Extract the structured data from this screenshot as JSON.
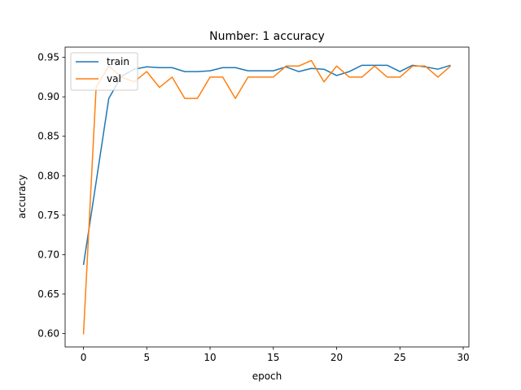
{
  "chart_data": {
    "type": "line",
    "title": "Number: 1 accuracy",
    "xlabel": "epoch",
    "ylabel": "accuracy",
    "xlim": [
      -1.45,
      30.45
    ],
    "ylim": [
      0.583,
      0.963
    ],
    "xticks": [
      0,
      5,
      10,
      15,
      20,
      25,
      30
    ],
    "yticks": [
      0.6,
      0.65,
      0.7,
      0.75,
      0.8,
      0.85,
      0.9,
      0.95
    ],
    "xtick_labels": [
      "0",
      "5",
      "10",
      "15",
      "20",
      "25",
      "30"
    ],
    "ytick_labels": [
      "0.60",
      "0.65",
      "0.70",
      "0.75",
      "0.80",
      "0.85",
      "0.90",
      "0.95"
    ],
    "grid": false,
    "legend_position": "top-left",
    "x": [
      0,
      1,
      2,
      3,
      4,
      5,
      6,
      7,
      8,
      9,
      10,
      11,
      12,
      13,
      14,
      15,
      16,
      17,
      18,
      19,
      20,
      21,
      22,
      23,
      24,
      25,
      26,
      27,
      28,
      29
    ],
    "series": [
      {
        "name": "train",
        "color": "#1f77b4",
        "values": [
          0.687,
          0.792,
          0.898,
          0.926,
          0.935,
          0.938,
          0.937,
          0.937,
          0.932,
          0.932,
          0.933,
          0.937,
          0.937,
          0.933,
          0.933,
          0.933,
          0.938,
          0.932,
          0.936,
          0.935,
          0.927,
          0.932,
          0.94,
          0.94,
          0.94,
          0.932,
          0.94,
          0.938,
          0.935,
          0.94
        ]
      },
      {
        "name": "val",
        "color": "#ff7f0e",
        "values": [
          0.599,
          0.912,
          0.939,
          0.925,
          0.919,
          0.932,
          0.912,
          0.925,
          0.898,
          0.898,
          0.925,
          0.925,
          0.898,
          0.925,
          0.925,
          0.925,
          0.939,
          0.939,
          0.946,
          0.919,
          0.939,
          0.925,
          0.925,
          0.939,
          0.925,
          0.925,
          0.939,
          0.939,
          0.925,
          0.939
        ]
      }
    ]
  }
}
